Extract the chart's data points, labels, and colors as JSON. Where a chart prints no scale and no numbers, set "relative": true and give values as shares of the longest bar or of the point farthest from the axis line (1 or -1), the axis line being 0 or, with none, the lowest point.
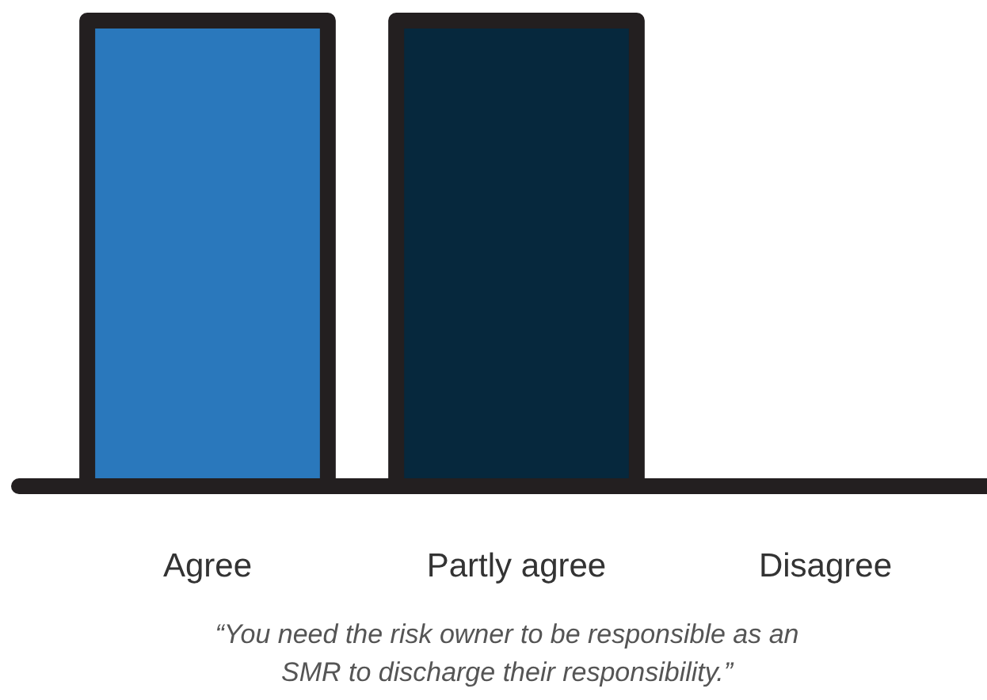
{
  "chart_data": {
    "type": "bar",
    "relative": true,
    "categories": [
      "Agree",
      "Partly agree",
      "Disagree"
    ],
    "values": [
      1,
      1,
      0
    ],
    "colors": [
      "#2a78bc",
      "#06283d",
      "#06283d"
    ],
    "annotations": [
      "“You need the risk owner to be responsible as an SMR to discharge their responsibility.”"
    ]
  }
}
